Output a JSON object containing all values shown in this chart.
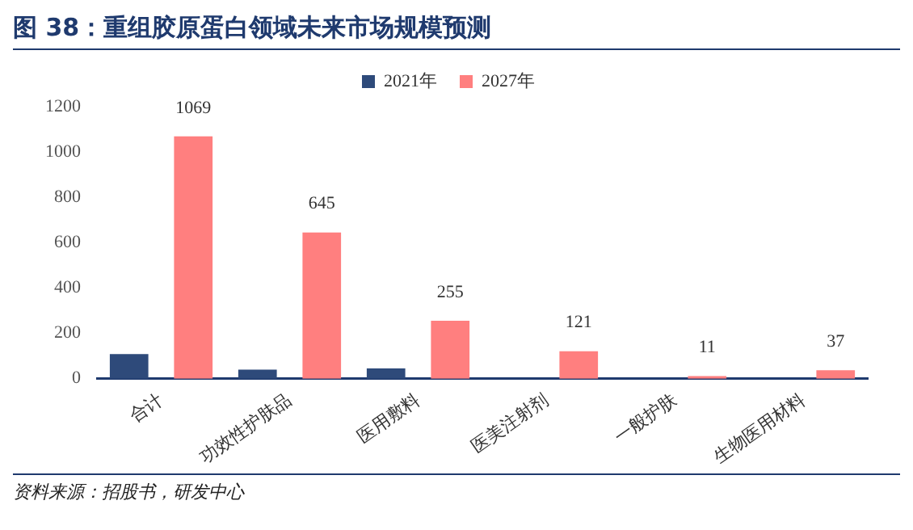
{
  "chart_data": {
    "type": "bar",
    "title": "图 38：重组胶原蛋白领域未来市场规模预测",
    "categories": [
      "合计",
      "功效性护肤品",
      "医用敷料",
      "医美注射剂",
      "一般护肤",
      "生物医用材料"
    ],
    "series": [
      {
        "name": "2021年",
        "color": "#2e4a7a",
        "values": [
          108,
          40,
          45,
          0,
          null,
          null
        ]
      },
      {
        "name": "2027年",
        "color": "#ff7f7f",
        "values": [
          1069,
          645,
          255,
          121,
          11,
          37
        ],
        "value_labels": [
          "1069",
          "645",
          "255",
          "121",
          "11",
          "37"
        ]
      }
    ],
    "ylim": [
      0,
      1200
    ],
    "yticks": [
      0,
      200,
      400,
      600,
      800,
      1000,
      1200
    ],
    "grid": false,
    "legend": "top",
    "annotations": [
      "资料来源：招股书，研发中心"
    ]
  }
}
